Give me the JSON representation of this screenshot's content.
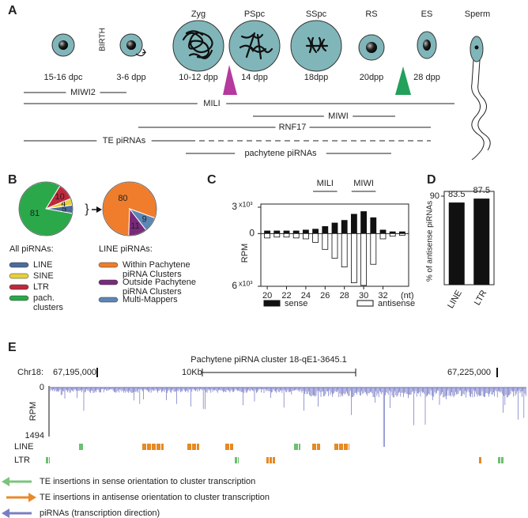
{
  "panel_labels": [
    "A",
    "B",
    "C",
    "D",
    "E"
  ],
  "panel_a": {
    "birth": "BIRTH",
    "stages": [
      "Zyg",
      "PSpc",
      "SSpc",
      "RS",
      "ES",
      "Sperm"
    ],
    "ages": [
      "15-16 dpc",
      "3-6 dpp",
      "10-12 dpp",
      "14 dpp",
      "18dpp",
      "20dpp",
      "28 dpp"
    ],
    "expression": [
      {
        "label": "MIWI2",
        "color": "#b5399e"
      },
      {
        "label": "MILI",
        "color": "#b5399e"
      },
      {
        "label": "MIWI",
        "color": "#23a05a"
      },
      {
        "label": "RNF17",
        "color": "#23a05a"
      },
      {
        "label": "TE piRNAs",
        "color": "#222222"
      },
      {
        "label": "pachytene piRNAs",
        "color": "#222222"
      }
    ]
  },
  "chart_data": [
    {
      "type": "pie",
      "title": "All piRNAs:",
      "categories": [
        "LINE",
        "SINE",
        "LTR",
        "pach. clusters"
      ],
      "values": [
        5,
        4,
        10,
        81
      ],
      "colors": [
        "#4b6b9c",
        "#e6d03c",
        "#c0283c",
        "#2aa84a"
      ]
    },
    {
      "type": "pie",
      "title": "LINE piRNAs:",
      "categories": [
        "Within Pachytene piRNA Clusters",
        "Outside Pachytene piRNA Clusters",
        "Multi-Mappers"
      ],
      "values": [
        80,
        11,
        9
      ],
      "colors": [
        "#ef7d2c",
        "#7a2a7c",
        "#5b86b5"
      ]
    },
    {
      "type": "bar",
      "y_label": "RPM",
      "y_multiplier": "x10³",
      "x_unit": "(nt)",
      "annotations": [
        "MILI",
        "MIWI"
      ],
      "categories": [
        20,
        null,
        22,
        null,
        24,
        null,
        26,
        null,
        28,
        null,
        30,
        null,
        32,
        null,
        null
      ],
      "series": [
        {
          "name": "sense",
          "color": "#111111",
          "values": [
            0.3,
            0.3,
            0.3,
            0.3,
            0.4,
            0.5,
            0.8,
            1.2,
            1.5,
            2.2,
            2.5,
            1.8,
            0.4,
            0.2,
            0.2
          ]
        },
        {
          "name": "antisense",
          "color": "#ffffff",
          "values": [
            -0.5,
            -0.4,
            -0.4,
            -0.5,
            -0.6,
            -1.0,
            -1.8,
            -2.8,
            -3.8,
            -5.6,
            -5.9,
            -3.5,
            -0.6,
            -0.3,
            -0.2
          ]
        }
      ],
      "ylim": [
        -6,
        3
      ],
      "yticks": [
        {
          "value": 3,
          "label": "3"
        },
        0,
        {
          "value": -6,
          "label": "6"
        }
      ]
    },
    {
      "type": "bar",
      "y_label": "% of antisense piRNAs",
      "categories": [
        "LINE",
        "LTR"
      ],
      "values": [
        83.5,
        87.5
      ],
      "color": "#111111",
      "ylim": [
        0,
        90
      ],
      "yticks": [
        90
      ]
    }
  ],
  "panel_e": {
    "title": "Pachytene piRNA cluster 18-qE1-3645.1",
    "chromosome": "Chr18:",
    "start": "67,195,000",
    "scale": "10Kb",
    "end": "67,225,000",
    "y_label": "RPM",
    "y_ticks": [
      "0",
      "1494"
    ],
    "tracks": [
      "LINE",
      "LTR"
    ],
    "legend": [
      {
        "label": "TE insertions in sense orientation to cluster transcription",
        "color": "#7cc47c"
      },
      {
        "label": "TE insertions in antisense orientation to cluster transcription",
        "color": "#e88a2c"
      },
      {
        "label": "piRNAs (transcription direction)",
        "color": "#7a7fc4"
      }
    ]
  }
}
